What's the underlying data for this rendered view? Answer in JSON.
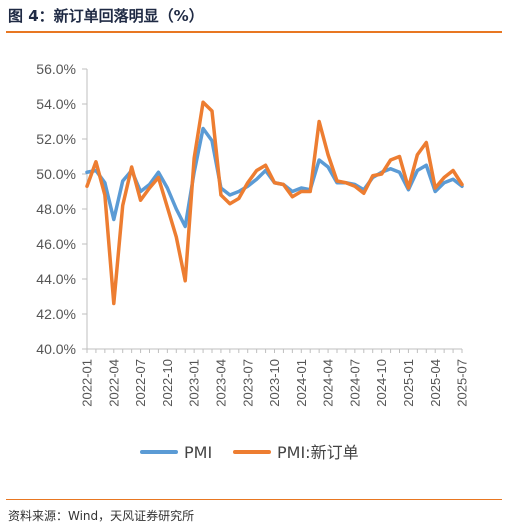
{
  "figure": {
    "title": "图 4：新订单回落明显（%）",
    "source": "资料来源：Wind，天风证券研究所"
  },
  "chart_data": {
    "type": "line",
    "x": [
      "2022-01",
      "2022-02",
      "2022-03",
      "2022-04",
      "2022-05",
      "2022-06",
      "2022-07",
      "2022-08",
      "2022-09",
      "2022-10",
      "2022-11",
      "2022-12",
      "2023-01",
      "2023-02",
      "2023-03",
      "2023-04",
      "2023-05",
      "2023-06",
      "2023-07",
      "2023-08",
      "2023-09",
      "2023-10",
      "2023-11",
      "2023-12",
      "2024-01",
      "2024-02",
      "2024-03",
      "2024-04",
      "2024-05",
      "2024-06",
      "2024-07",
      "2024-08",
      "2024-09",
      "2024-10",
      "2024-11",
      "2024-12",
      "2025-01",
      "2025-02",
      "2025-03",
      "2025-04",
      "2025-05",
      "2025-06",
      "2025-07"
    ],
    "tick_labels": [
      "2022-01",
      "2022-04",
      "2022-07",
      "2022-10",
      "2023-01",
      "2023-04",
      "2023-07",
      "2023-10",
      "2024-01",
      "2024-04",
      "2024-07",
      "2024-10",
      "2025-01",
      "2025-04",
      "2025-07"
    ],
    "series": [
      {
        "name": "PMI",
        "color": "#5b9bd5",
        "values": [
          50.1,
          50.2,
          49.5,
          47.4,
          49.6,
          50.2,
          49.0,
          49.4,
          50.1,
          49.2,
          48.0,
          47.0,
          50.1,
          52.6,
          51.9,
          49.2,
          48.8,
          49.0,
          49.3,
          49.7,
          50.2,
          49.5,
          49.4,
          49.0,
          49.2,
          49.1,
          50.8,
          50.4,
          49.5,
          49.5,
          49.4,
          49.1,
          49.8,
          50.1,
          50.3,
          50.1,
          49.1,
          50.2,
          50.5,
          49.0,
          49.5,
          49.7,
          49.3
        ]
      },
      {
        "name": "PMI:新订单",
        "color": "#ed7d31",
        "values": [
          49.3,
          50.7,
          48.8,
          42.6,
          48.2,
          50.4,
          48.5,
          49.2,
          49.8,
          48.1,
          46.4,
          43.9,
          50.9,
          54.1,
          53.6,
          48.8,
          48.3,
          48.6,
          49.5,
          50.2,
          50.5,
          49.5,
          49.4,
          48.7,
          49.0,
          49.0,
          53.0,
          51.1,
          49.6,
          49.5,
          49.3,
          48.9,
          49.9,
          50.0,
          50.8,
          51.0,
          49.2,
          51.1,
          51.8,
          49.2,
          49.8,
          50.2,
          49.4
        ]
      }
    ],
    "y_ticks": [
      "56.0%",
      "54.0%",
      "52.0%",
      "50.0%",
      "48.0%",
      "46.0%",
      "44.0%",
      "42.0%",
      "40.0%"
    ],
    "ylim": [
      40,
      56
    ],
    "grid": false,
    "legend": "bottom"
  }
}
